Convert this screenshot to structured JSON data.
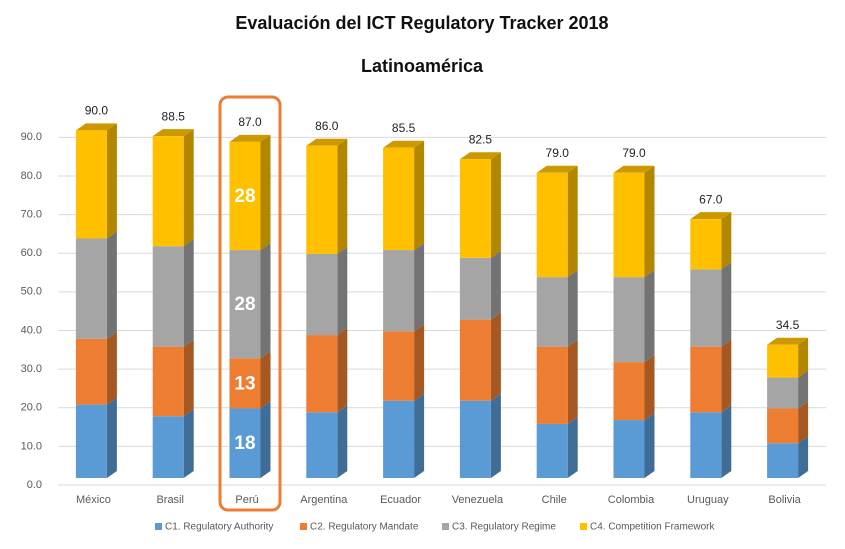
{
  "chart_data": {
    "type": "bar3d_stacked",
    "title": "Evaluación del ICT Regulatory Tracker 2018",
    "subtitle": "Latinoamérica",
    "categories": [
      "México",
      "Brasil",
      "Perú",
      "Argentina",
      "Ecuador",
      "Venezuela",
      "Chile",
      "Colombia",
      "Uruguay",
      "Bolivia"
    ],
    "series": [
      {
        "name": "C1. Regulatory Authority",
        "color": "#5b9bd5",
        "values": [
          19,
          16,
          18,
          17,
          20,
          20,
          14,
          15,
          17,
          9
        ]
      },
      {
        "name": "C2. Regulatory Mandate",
        "color": "#ed7d31",
        "values": [
          17,
          18,
          13,
          20,
          18,
          21,
          20,
          15,
          17,
          9
        ]
      },
      {
        "name": "C3. Regulatory Regime",
        "color": "#a5a5a5",
        "values": [
          26,
          26,
          28,
          21,
          21,
          16,
          18,
          22,
          20,
          8
        ]
      },
      {
        "name": "C4. Competition Framework",
        "color": "#ffc000",
        "values": [
          28,
          28.5,
          28,
          28,
          26.5,
          25.5,
          27,
          27,
          13,
          8.5
        ]
      }
    ],
    "totals": {
      "values": [
        90,
        88.5,
        87,
        86,
        85.5,
        82.5,
        79,
        79,
        67,
        34.5
      ],
      "value_labels": [
        "90.0",
        "88.5",
        "87.0",
        "86.0",
        "85.5",
        "82.5",
        "79.0",
        "79.0",
        "67.0",
        "34.5"
      ]
    },
    "highlight": "Perú",
    "ylim": [
      0,
      95
    ],
    "yticks": [
      {
        "value": 0,
        "label": "0.0"
      },
      {
        "value": 10,
        "label": "10.0"
      },
      {
        "value": 20,
        "label": "20.0"
      },
      {
        "value": 30,
        "label": "30.0"
      },
      {
        "value": 40,
        "label": "40.0"
      },
      {
        "value": 50,
        "label": "50.0"
      },
      {
        "value": 60,
        "label": "60.0"
      },
      {
        "value": 70,
        "label": "70.0"
      },
      {
        "value": 80,
        "label": "80.0"
      },
      {
        "value": 90,
        "label": "90.0"
      }
    ],
    "grid": true,
    "legend": "bottom"
  }
}
